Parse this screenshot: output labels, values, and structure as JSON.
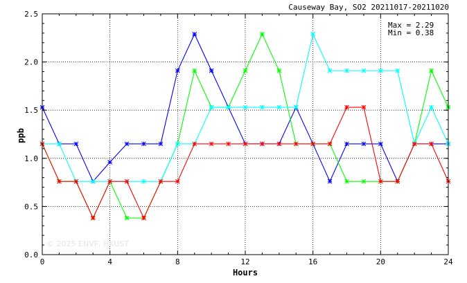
{
  "chart_data": {
    "type": "line",
    "title": "Causeway Bay, SO2 20211017-20211020",
    "xlabel": "Hours",
    "ylabel": "ppb",
    "xlim": [
      0,
      24
    ],
    "ylim": [
      0,
      2.5
    ],
    "x_ticks": [
      "0",
      "4",
      "8",
      "12",
      "16",
      "20",
      "24"
    ],
    "y_ticks": [
      "0.0",
      "0.5",
      "1.0",
      "1.5",
      "2.0",
      "2.5"
    ],
    "grid": true,
    "x": [
      0,
      1,
      2,
      3,
      4,
      5,
      6,
      7,
      8,
      9,
      10,
      11,
      12,
      13,
      14,
      15,
      16,
      17,
      18,
      19,
      20,
      21,
      22,
      23,
      24
    ],
    "series": [
      {
        "color": "#0000ff",
        "values": [
          1.53,
          1.15,
          1.15,
          0.76,
          0.96,
          1.15,
          1.15,
          1.15,
          1.91,
          2.29,
          1.91,
          1.53,
          1.15,
          1.15,
          1.15,
          1.53,
          1.15,
          0.76,
          1.15,
          1.15,
          1.15,
          0.76,
          1.15,
          1.15,
          1.15
        ]
      },
      {
        "color": "#00ff00",
        "values": [
          1.15,
          0.76,
          0.76,
          0.38,
          0.76,
          0.38,
          0.38,
          0.76,
          1.15,
          1.91,
          1.53,
          1.53,
          1.91,
          2.29,
          1.91,
          1.15,
          1.15,
          1.15,
          0.76,
          0.76,
          0.76,
          0.76,
          1.15,
          1.91,
          1.53
        ]
      },
      {
        "color": "#00ffff",
        "values": [
          1.15,
          1.15,
          0.76,
          0.76,
          0.76,
          0.76,
          0.76,
          0.76,
          1.15,
          1.15,
          1.53,
          1.53,
          1.53,
          1.53,
          1.53,
          1.53,
          2.29,
          1.91,
          1.91,
          1.91,
          1.91,
          1.91,
          1.15,
          1.53,
          1.15
        ]
      },
      {
        "color": "#ff0000",
        "values": [
          1.15,
          0.76,
          0.76,
          0.38,
          0.76,
          0.76,
          0.38,
          0.76,
          0.76,
          1.15,
          1.15,
          1.15,
          1.15,
          1.15,
          1.15,
          1.15,
          1.15,
          1.15,
          1.53,
          1.53,
          0.76,
          0.76,
          1.15,
          1.15,
          0.76
        ]
      }
    ],
    "annotations": {
      "max_text": "Max = 2.29",
      "min_text": "Min = 0.38"
    },
    "watermark": "© 2025  ENVF, HKUST"
  }
}
